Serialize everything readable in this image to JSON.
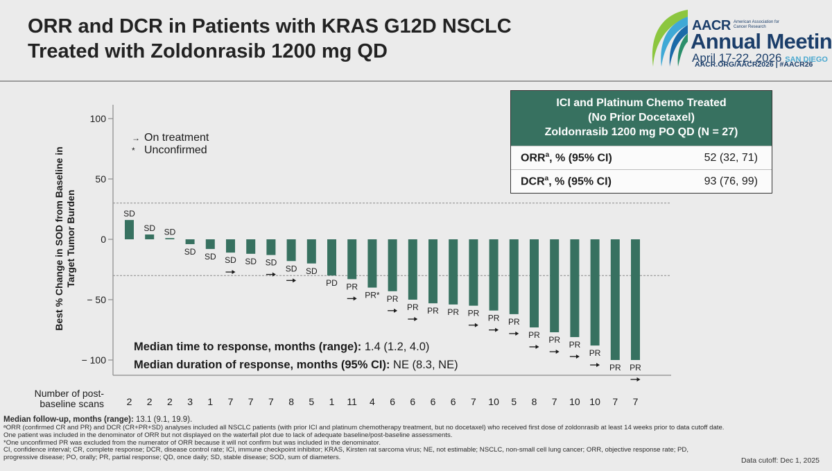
{
  "title": {
    "line1": "ORR and DCR in Patients with KRAS G12D NSCLC",
    "line2": "Treated with Zoldonrasib 1200 mg QD"
  },
  "logo": {
    "aacr": "AACR",
    "assoc": "American Association for Cancer Research",
    "meeting": "Annual Meeting",
    "dates": "April 17-22, 2026",
    "city": "SAN DIEGO",
    "url": "AACR.ORG/AACR2026 | #AACR26"
  },
  "legend": {
    "on_treatment_symbol": "→",
    "on_treatment": "On treatment",
    "unconfirmed_symbol": "*",
    "unconfirmed": "Unconfirmed"
  },
  "stats": {
    "ttr_label": "Median time to response, months (range):",
    "ttr_value": "1.4 (1.2, 4.0)",
    "dor_label": "Median duration of response, months (95% CI):",
    "dor_value": "NE (8.3, NE)"
  },
  "scans_label": "Number of post-baseline scans",
  "table": {
    "header_line1": "ICI and Platinum Chemo Treated",
    "header_line2": "(No Prior Docetaxel)",
    "header_line3": "Zoldonrasib 1200 mg PO QD (N = 27)",
    "orr_label": "ORR",
    "orr_sup": "a",
    "orr_rest": ", % (95% CI)",
    "orr_value": "52 (32, 71)",
    "dcr_label": "DCR",
    "dcr_sup": "a",
    "dcr_rest": ", % (95% CI)",
    "dcr_value": "93 (76, 99)"
  },
  "footnotes": {
    "followup_label": "Median follow-up, months (range):",
    "followup_value": "13.1 (9.1, 19.9).",
    "note_a": "ᵃORR (confirmed CR and PR) and DCR (CR+PR+SD) analyses included all NSCLC patients (with prior ICI and platinum chemotherapy treatment, but no docetaxel) who received first dose of zoldonrasib at least 14 weeks prior to data cutoff date. One patient was included in the denominator of ORR but not displayed on the waterfall plot due to lack of adequate baseline/post-baseline assessments.",
    "note_star": "*One unconfirmed PR was excluded from the numerator of ORR because it will not confirm but was included in the denominator.",
    "abbrev": "CI, confidence interval; CR, complete response; DCR, disease control rate; ICI, immune checkpoint inhibitor; KRAS, Kirsten rat sarcoma virus; NE, not estimable; NSCLC, non-small cell lung cancer; ORR, objective response rate; PD, progressive disease; PO, orally; PR, partial response; QD, once daily; SD, stable disease; SOD, sum of diameters.",
    "cutoff": "Data cutoff: Dec 1, 2025"
  },
  "colors": {
    "bar": "#377160",
    "table_header": "#377160",
    "title": "#222222",
    "logo_blue": "#1b3e6a"
  },
  "chart_data": {
    "type": "bar",
    "title": "",
    "xlabel": "",
    "ylabel": "Best % Change in SOD from Baseline in Target Tumor Burden",
    "ylim": [
      -110,
      105
    ],
    "yticks": [
      100,
      50,
      0,
      -50,
      -100
    ],
    "ytick_labels": [
      "100",
      "50",
      "0",
      "− 50",
      "− 100"
    ],
    "reference_lines": [
      30,
      -30
    ],
    "bars": [
      {
        "value": 16,
        "response": "SD",
        "on_treatment": false,
        "scans": "2"
      },
      {
        "value": 4,
        "response": "SD",
        "on_treatment": false,
        "scans": "2"
      },
      {
        "value": 1,
        "response": "SD",
        "on_treatment": false,
        "scans": "2"
      },
      {
        "value": -4,
        "response": "SD",
        "on_treatment": false,
        "scans": "3"
      },
      {
        "value": -8,
        "response": "SD",
        "on_treatment": false,
        "scans": "1"
      },
      {
        "value": -11,
        "response": "SD",
        "on_treatment": true,
        "scans": "7"
      },
      {
        "value": -12,
        "response": "SD",
        "on_treatment": false,
        "scans": "7"
      },
      {
        "value": -13,
        "response": "SD",
        "on_treatment": true,
        "scans": "7"
      },
      {
        "value": -18,
        "response": "SD",
        "on_treatment": true,
        "scans": "8"
      },
      {
        "value": -20,
        "response": "SD",
        "on_treatment": false,
        "scans": "5"
      },
      {
        "value": -30,
        "response": "PD",
        "on_treatment": false,
        "scans": "1"
      },
      {
        "value": -33,
        "response": "PR",
        "on_treatment": true,
        "scans": "11"
      },
      {
        "value": -40,
        "response": "PR*",
        "on_treatment": false,
        "scans": "4"
      },
      {
        "value": -43,
        "response": "PR",
        "on_treatment": true,
        "scans": "6"
      },
      {
        "value": -50,
        "response": "PR",
        "on_treatment": true,
        "scans": "6"
      },
      {
        "value": -53,
        "response": "PR",
        "on_treatment": false,
        "scans": "6"
      },
      {
        "value": -54,
        "response": "PR",
        "on_treatment": false,
        "scans": "6"
      },
      {
        "value": -55,
        "response": "PR",
        "on_treatment": true,
        "scans": "7"
      },
      {
        "value": -59,
        "response": "PR",
        "on_treatment": true,
        "scans": "10"
      },
      {
        "value": -62,
        "response": "PR",
        "on_treatment": true,
        "scans": "5"
      },
      {
        "value": -73,
        "response": "PR",
        "on_treatment": true,
        "scans": "8"
      },
      {
        "value": -77,
        "response": "PR",
        "on_treatment": true,
        "scans": "7"
      },
      {
        "value": -81,
        "response": "PR",
        "on_treatment": true,
        "scans": "10"
      },
      {
        "value": -88,
        "response": "PR",
        "on_treatment": true,
        "scans": "10"
      },
      {
        "value": -100,
        "response": "PR",
        "on_treatment": false,
        "scans": "7"
      },
      {
        "value": -100,
        "response": "PR",
        "on_treatment": true,
        "scans": "7"
      }
    ]
  }
}
